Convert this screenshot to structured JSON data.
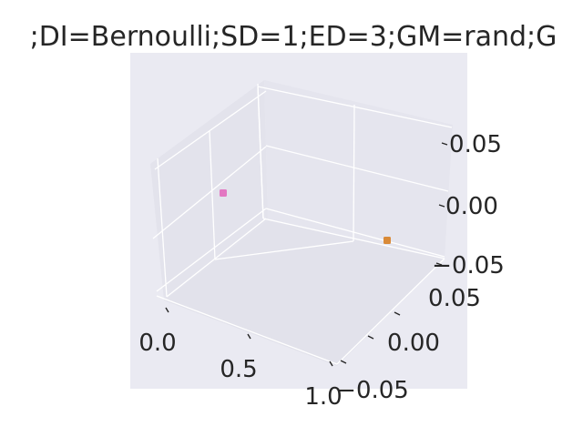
{
  "chart_data": {
    "type": "scatter3d",
    "title": ";DI=Bernoulli;SD=1;ED=3;GM=rand;G",
    "xlabel": "",
    "ylabel": "",
    "zlabel": "",
    "grid": true,
    "x_ticks": [
      "0.0",
      "0.5",
      "1.0"
    ],
    "y_ticks": [
      "0.05",
      "0.00",
      "−0.05"
    ],
    "z_ticks": [
      "0.05",
      "0.00",
      "−0.05"
    ],
    "xlim": [
      0,
      1
    ],
    "ylim": [
      -0.06,
      0.06
    ],
    "zlim": [
      -0.06,
      0.06
    ],
    "points": [
      {
        "x": 0.0,
        "y": 0.0,
        "z": 0.0,
        "color": "#e377c2"
      },
      {
        "x": 1.0,
        "y": 0.0,
        "z": 0.0,
        "color": "#d98a38"
      }
    ]
  },
  "colors": {
    "pane": "#eaeaf2",
    "pane_back": "#e5e5ee",
    "grid": "#ffffff",
    "text": "#262626"
  }
}
